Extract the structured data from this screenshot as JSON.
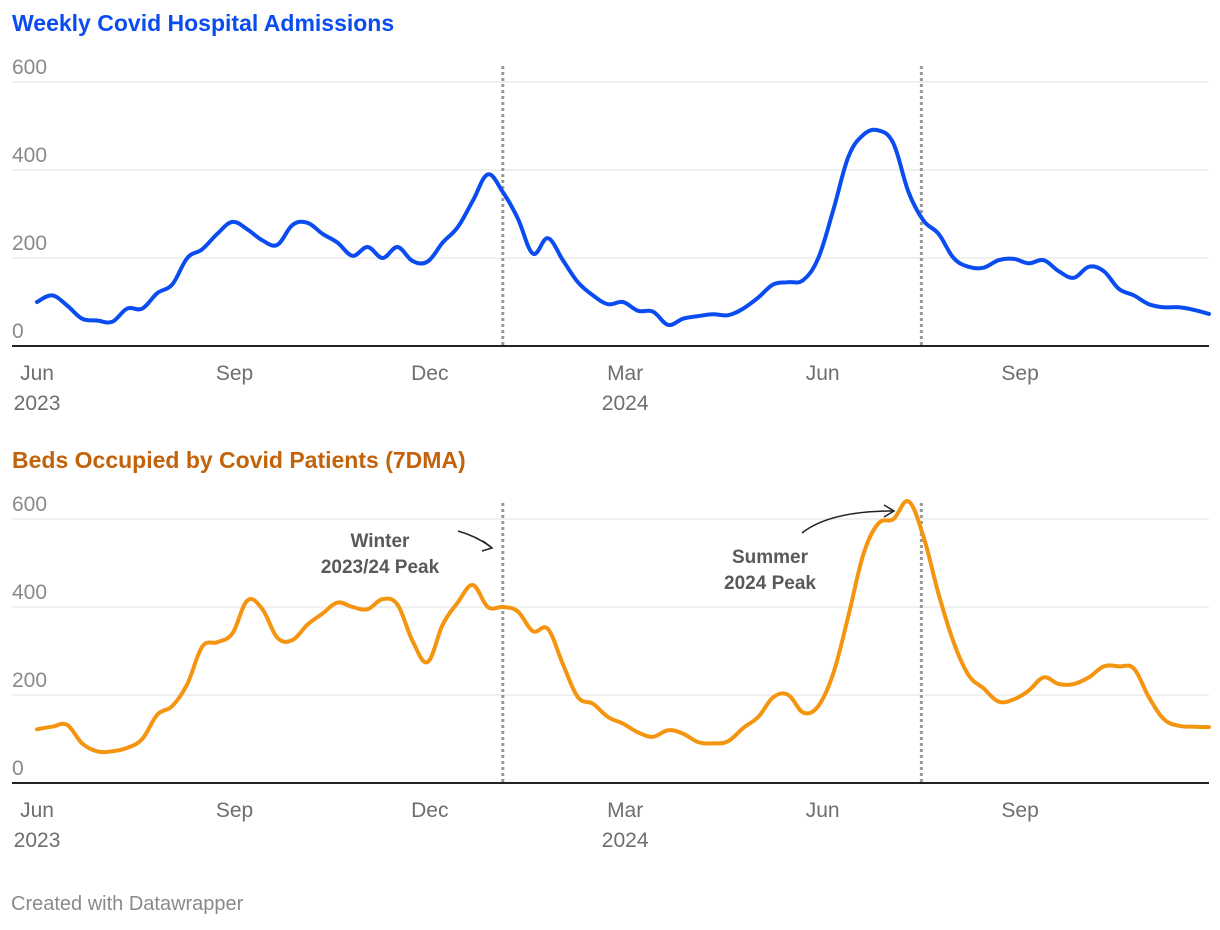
{
  "credit": "Created with Datawrapper",
  "colors": {
    "admissions": "#0a4cf0",
    "beds": "#f5940e",
    "beds_title": "#c2620b",
    "grid": "#e2e2e2",
    "axis": "#222222",
    "marker": "#999999"
  },
  "x_ticks": [
    {
      "label": "Jun",
      "year": "2023",
      "date": "2023-06-01"
    },
    {
      "label": "Sep",
      "year": "",
      "date": "2023-09-01"
    },
    {
      "label": "Dec",
      "year": "",
      "date": "2023-12-01"
    },
    {
      "label": "Mar",
      "year": "2024",
      "date": "2024-03-01"
    },
    {
      "label": "Jun",
      "year": "",
      "date": "2024-06-01"
    },
    {
      "label": "Sep",
      "year": "",
      "date": "2024-09-01"
    }
  ],
  "chart_data": [
    {
      "type": "line",
      "title": "Weekly Covid Hospital Admissions",
      "xlabel": "",
      "ylabel": "",
      "xlim": [
        "2023-05-25",
        "2024-11-28"
      ],
      "ylim": [
        0,
        600
      ],
      "y_ticks": [
        0,
        200,
        400,
        600
      ],
      "grid": true,
      "reference_lines": [
        "2024-01-04",
        "2024-07-17"
      ],
      "series": [
        {
          "name": "Weekly admissions",
          "x": [
            "2023-06-01",
            "2023-06-08",
            "2023-06-15",
            "2023-06-22",
            "2023-06-29",
            "2023-07-06",
            "2023-07-13",
            "2023-07-20",
            "2023-07-27",
            "2023-08-03",
            "2023-08-10",
            "2023-08-17",
            "2023-08-24",
            "2023-08-31",
            "2023-09-07",
            "2023-09-14",
            "2023-09-21",
            "2023-09-28",
            "2023-10-05",
            "2023-10-12",
            "2023-10-19",
            "2023-10-26",
            "2023-11-02",
            "2023-11-09",
            "2023-11-16",
            "2023-11-23",
            "2023-11-30",
            "2023-12-07",
            "2023-12-14",
            "2023-12-21",
            "2023-12-28",
            "2024-01-04",
            "2024-01-11",
            "2024-01-18",
            "2024-01-25",
            "2024-02-01",
            "2024-02-08",
            "2024-02-15",
            "2024-02-22",
            "2024-02-29",
            "2024-03-07",
            "2024-03-14",
            "2024-03-21",
            "2024-03-28",
            "2024-04-04",
            "2024-04-11",
            "2024-04-18",
            "2024-04-25",
            "2024-05-02",
            "2024-05-09",
            "2024-05-16",
            "2024-05-23",
            "2024-05-30",
            "2024-06-06",
            "2024-06-13",
            "2024-06-20",
            "2024-06-27",
            "2024-07-04",
            "2024-07-11",
            "2024-07-18",
            "2024-07-25",
            "2024-08-01",
            "2024-08-08",
            "2024-08-15",
            "2024-08-22",
            "2024-08-29",
            "2024-09-05",
            "2024-09-12",
            "2024-09-19",
            "2024-09-26",
            "2024-10-03",
            "2024-10-10",
            "2024-10-17",
            "2024-10-24",
            "2024-10-31",
            "2024-11-07",
            "2024-11-14",
            "2024-11-21",
            "2024-11-28"
          ],
          "values": [
            100,
            115,
            92,
            62,
            58,
            55,
            85,
            85,
            120,
            140,
            200,
            220,
            255,
            282,
            265,
            240,
            230,
            275,
            280,
            255,
            235,
            205,
            225,
            200,
            225,
            193,
            192,
            235,
            270,
            330,
            390,
            350,
            290,
            210,
            245,
            195,
            145,
            115,
            95,
            100,
            80,
            78,
            48,
            62,
            68,
            72,
            70,
            85,
            110,
            140,
            145,
            150,
            200,
            310,
            430,
            480,
            490,
            460,
            350,
            285,
            255,
            200,
            180,
            178,
            195,
            198,
            188,
            195,
            170,
            155,
            180,
            170,
            130,
            115,
            95,
            88,
            88,
            82,
            73
          ]
        }
      ]
    },
    {
      "type": "line",
      "title": "Beds Occupied by Covid Patients (7DMA)",
      "xlabel": "",
      "ylabel": "",
      "xlim": [
        "2023-05-25",
        "2024-11-28"
      ],
      "ylim": [
        0,
        600
      ],
      "y_ticks": [
        0,
        200,
        400,
        600
      ],
      "grid": true,
      "reference_lines": [
        "2024-01-04",
        "2024-07-17"
      ],
      "annotations": [
        {
          "line1": "Winter",
          "line2": "2023/24 Peak"
        },
        {
          "line1": "Summer",
          "line2": "2024 Peak"
        }
      ],
      "series": [
        {
          "name": "Beds occupied (7DMA)",
          "x": [
            "2023-06-01",
            "2023-06-08",
            "2023-06-15",
            "2023-06-22",
            "2023-06-29",
            "2023-07-06",
            "2023-07-13",
            "2023-07-20",
            "2023-07-27",
            "2023-08-03",
            "2023-08-10",
            "2023-08-17",
            "2023-08-24",
            "2023-08-31",
            "2023-09-07",
            "2023-09-14",
            "2023-09-21",
            "2023-09-28",
            "2023-10-05",
            "2023-10-12",
            "2023-10-19",
            "2023-10-26",
            "2023-11-02",
            "2023-11-09",
            "2023-11-16",
            "2023-11-23",
            "2023-11-30",
            "2023-12-07",
            "2023-12-14",
            "2023-12-21",
            "2023-12-28",
            "2024-01-04",
            "2024-01-11",
            "2024-01-18",
            "2024-01-25",
            "2024-02-01",
            "2024-02-08",
            "2024-02-15",
            "2024-02-22",
            "2024-02-29",
            "2024-03-07",
            "2024-03-14",
            "2024-03-21",
            "2024-03-28",
            "2024-04-04",
            "2024-04-11",
            "2024-04-18",
            "2024-04-25",
            "2024-05-02",
            "2024-05-09",
            "2024-05-16",
            "2024-05-23",
            "2024-05-30",
            "2024-06-06",
            "2024-06-13",
            "2024-06-20",
            "2024-06-27",
            "2024-07-04",
            "2024-07-11",
            "2024-07-18",
            "2024-07-25",
            "2024-08-01",
            "2024-08-08",
            "2024-08-15",
            "2024-08-22",
            "2024-08-29",
            "2024-09-05",
            "2024-09-12",
            "2024-09-19",
            "2024-09-26",
            "2024-10-03",
            "2024-10-10",
            "2024-10-17",
            "2024-10-24",
            "2024-10-31",
            "2024-11-07",
            "2024-11-14",
            "2024-11-21",
            "2024-11-28"
          ],
          "values": [
            122,
            128,
            132,
            90,
            72,
            72,
            80,
            100,
            155,
            175,
            225,
            310,
            320,
            340,
            415,
            395,
            330,
            325,
            360,
            385,
            410,
            400,
            395,
            418,
            405,
            322,
            275,
            360,
            410,
            450,
            400,
            400,
            390,
            345,
            350,
            270,
            195,
            180,
            150,
            135,
            115,
            105,
            120,
            112,
            93,
            90,
            95,
            125,
            150,
            195,
            200,
            160,
            175,
            250,
            380,
            520,
            590,
            600,
            640,
            560,
            430,
            320,
            245,
            215,
            185,
            190,
            210,
            240,
            225,
            225,
            240,
            265,
            265,
            260,
            195,
            145,
            130,
            128,
            127
          ]
        }
      ]
    }
  ]
}
